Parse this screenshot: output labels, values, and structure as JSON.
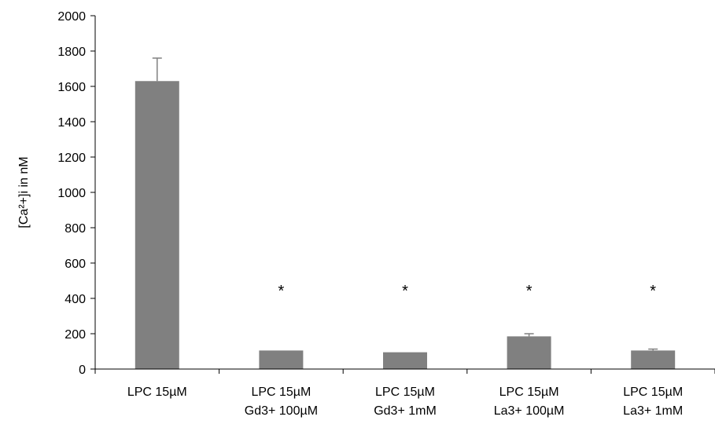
{
  "chart_data": {
    "type": "bar",
    "title": "",
    "xlabel": "",
    "ylabel": "[Ca²+]i in nM",
    "ylim": [
      0,
      2000
    ],
    "yticks": [
      0,
      200,
      400,
      600,
      800,
      1000,
      1200,
      1400,
      1600,
      1800,
      2000
    ],
    "grid": false,
    "legend": "none",
    "bar_color": "#808080",
    "categories": [
      [
        "LPC 15µM"
      ],
      [
        "LPC 15µM",
        "Gd3+ 100µM"
      ],
      [
        "LPC 15µM",
        "Gd3+ 1mM"
      ],
      [
        "LPC 15µM",
        "La3+ 100µM"
      ],
      [
        "LPC 15µM",
        "La3+ 1mM"
      ]
    ],
    "values": [
      1630,
      105,
      95,
      185,
      105
    ],
    "error_upper": [
      130,
      0,
      0,
      15,
      8
    ],
    "annotations": [
      "",
      "*",
      "*",
      "*",
      "*"
    ]
  }
}
